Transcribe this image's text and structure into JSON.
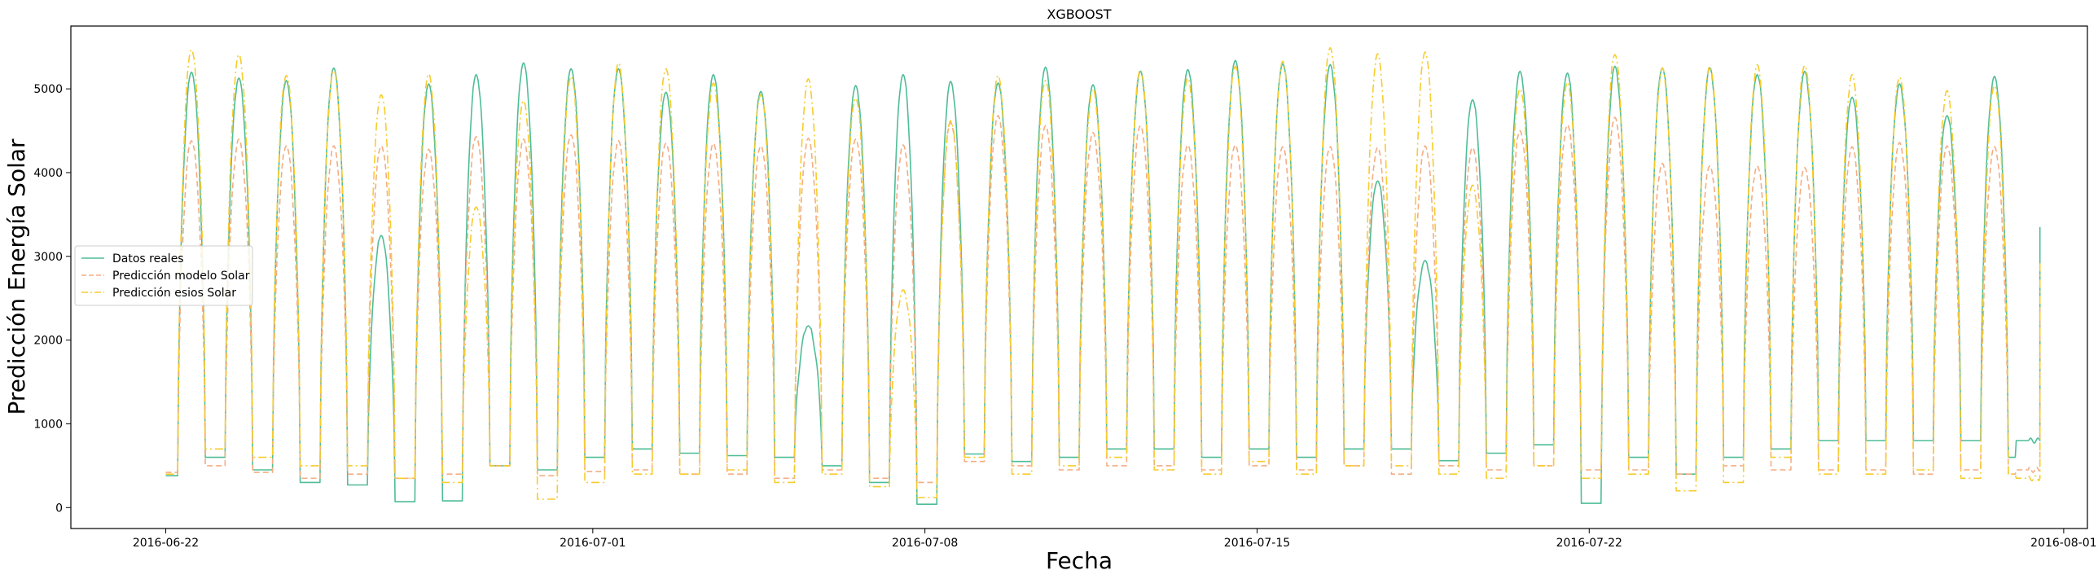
{
  "chart_data": {
    "type": "line",
    "title": "XGBOOST",
    "xlabel": "Fecha",
    "ylabel": "Predicción Energía Solar",
    "xlim": [
      "2016-06-20T00:00",
      "2016-08-01T12:00"
    ],
    "ylim": [
      -250,
      5750
    ],
    "x_ticks": [
      "2016-06-22",
      "2016-07-01",
      "2016-07-08",
      "2016-07-15",
      "2016-07-22",
      "2016-08-01"
    ],
    "y_ticks": [
      0,
      1000,
      2000,
      3000,
      4000,
      5000
    ],
    "grid": false,
    "legend_position": "center-left",
    "x_start": "2016-06-22T00:00",
    "x_end": "2016-07-31T12:00",
    "series": [
      {
        "name": "Datos reales",
        "color": "#4fbd96",
        "style": "solid",
        "night_values": [
          380,
          600,
          450,
          300,
          270,
          70,
          80,
          500,
          450,
          600,
          700,
          650,
          620,
          600,
          500,
          300,
          40,
          640,
          550,
          600,
          700,
          700,
          600,
          700,
          600,
          700,
          700,
          560,
          650,
          750,
          50,
          600,
          400,
          600,
          700,
          800,
          800,
          800,
          800,
          600,
          700,
          700,
          620,
          600,
          600,
          50,
          450,
          500,
          580
        ],
        "peaks": [
          5200,
          5130,
          5100,
          5250,
          3250,
          5060,
          5170,
          5310,
          5240,
          5240,
          4960,
          5170,
          4970,
          2170,
          5040,
          5170,
          5090,
          5070,
          5260,
          5050,
          5210,
          5230,
          5340,
          5300,
          5290,
          3900,
          2950,
          4870,
          5210,
          5190,
          5270,
          5250,
          5250,
          5170,
          5210,
          4900,
          5060,
          4680,
          5150
        ],
        "end_value": 3350
      },
      {
        "name": "Predicción modelo Solar",
        "color": "#f4ad83",
        "style": "dashed",
        "night_values": [
          420,
          500,
          420,
          350,
          400,
          350,
          400,
          500,
          380,
          430,
          450,
          400,
          400,
          350,
          450,
          350,
          300,
          550,
          500,
          450,
          500,
          500,
          450,
          500,
          450,
          500,
          400,
          500,
          450,
          500,
          450,
          450,
          400,
          500,
          450,
          450,
          450,
          400,
          450,
          400,
          450,
          400,
          400,
          400,
          400,
          400,
          400,
          400,
          400
        ],
        "peaks": [
          4380,
          4400,
          4320,
          4320,
          4320,
          4280,
          4430,
          4400,
          4450,
          4380,
          4350,
          4350,
          4320,
          4410,
          4400,
          4330,
          4600,
          4680,
          4560,
          4480,
          4560,
          4330,
          4330,
          4310,
          4310,
          4300,
          4320,
          4300,
          4500,
          4570,
          4660,
          4110,
          4080,
          4080,
          4060,
          4310,
          4360,
          4320,
          4310
        ],
        "end_value": 2380
      },
      {
        "name": "Predicción esios Solar",
        "color": "#f7cc2d",
        "style": "dashdot",
        "night_values": [
          400,
          700,
          600,
          500,
          500,
          350,
          300,
          500,
          100,
          300,
          400,
          400,
          450,
          300,
          400,
          250,
          120,
          600,
          400,
          500,
          600,
          450,
          400,
          550,
          400,
          500,
          500,
          400,
          350,
          500,
          350,
          400,
          200,
          300,
          600,
          400,
          400,
          450,
          350,
          400,
          600,
          500,
          450,
          450,
          300,
          450,
          350,
          350,
          100
        ],
        "peaks": [
          5470,
          5410,
          5160,
          5220,
          4930,
          5180,
          3590,
          4860,
          5150,
          5310,
          5240,
          5070,
          4930,
          5120,
          4890,
          2600,
          4620,
          5160,
          5100,
          5000,
          5230,
          5130,
          5270,
          5330,
          5490,
          5420,
          5440,
          3850,
          5000,
          5080,
          5410,
          5250,
          5270,
          5290,
          5280,
          5170,
          5140,
          4980,
          5040
        ],
        "end_value": 2950
      }
    ]
  }
}
